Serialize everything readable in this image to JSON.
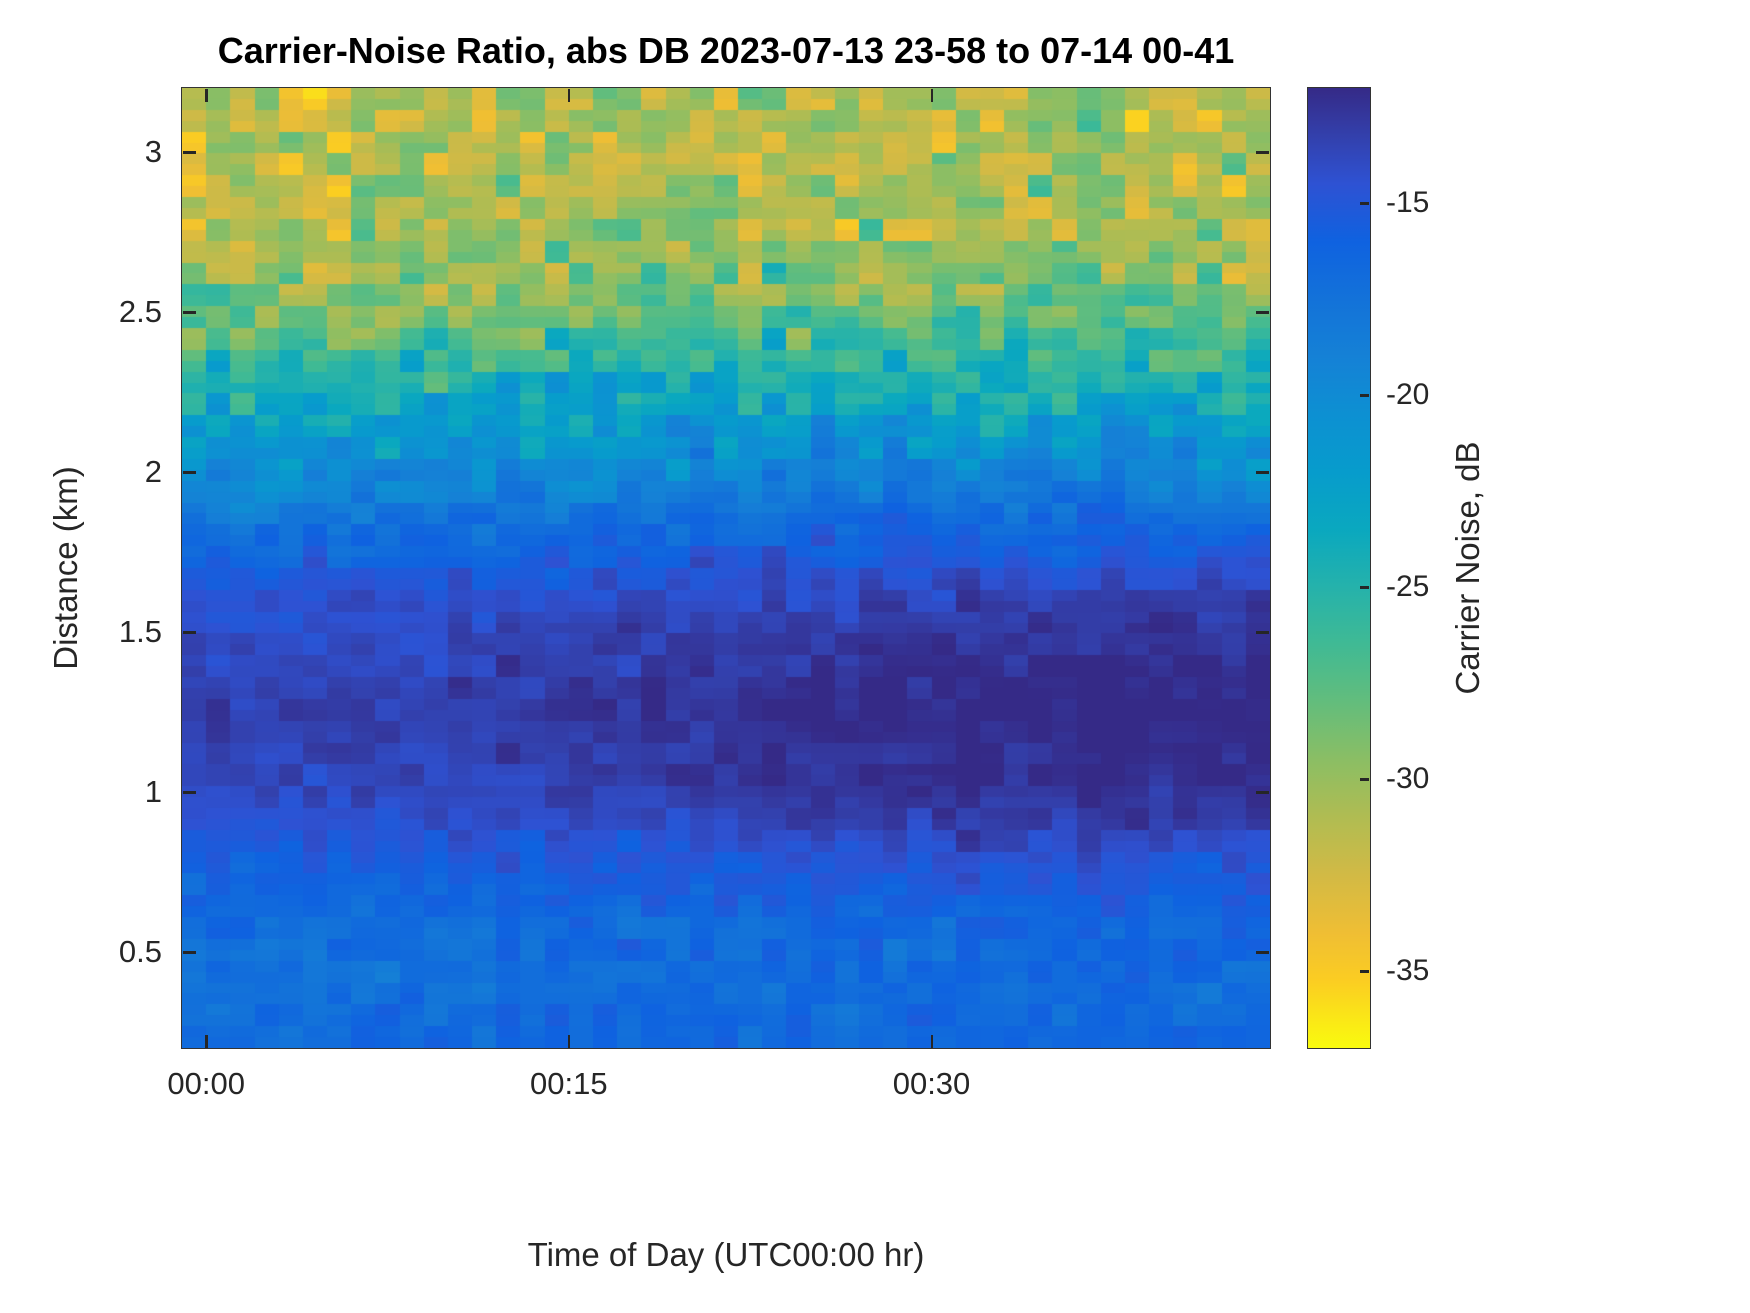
{
  "chart_data": {
    "type": "heatmap",
    "title": "Carrier-Noise Ratio, abs DB 2023-07-13 23-58 to 07-14 00-41",
    "xlabel": "Time of Day (UTC00:00 hr)",
    "ylabel": "Distance (km)",
    "colorbar_label": "Carrier Noise, dB",
    "x_range_minutes": [
      -1,
      44
    ],
    "y_range_km": [
      0.2,
      3.2
    ],
    "x_ticks": [
      {
        "minute": 0,
        "label": "00:00"
      },
      {
        "minute": 15,
        "label": "00:15"
      },
      {
        "minute": 30,
        "label": "00:30"
      }
    ],
    "y_ticks": [
      {
        "km": 0.5,
        "label": "0.5"
      },
      {
        "km": 1,
        "label": "1"
      },
      {
        "km": 1.5,
        "label": "1.5"
      },
      {
        "km": 2,
        "label": "2"
      },
      {
        "km": 2.5,
        "label": "2.5"
      },
      {
        "km": 3,
        "label": "3"
      }
    ],
    "color_scale": {
      "min_db": -37,
      "max_db": -12,
      "ticks": [
        {
          "db": -15,
          "label": "-15"
        },
        {
          "db": -20,
          "label": "-20"
        },
        {
          "db": -25,
          "label": "-25"
        },
        {
          "db": -30,
          "label": "-30"
        },
        {
          "db": -35,
          "label": "-35"
        }
      ]
    },
    "colormap": {
      "name": "parula-reversed (dark blue = strong carrier near -12 dB, yellow = weak near -37 dB)",
      "stops": [
        {
          "t": 0.0,
          "hex": "#352a87"
        },
        {
          "t": 0.05,
          "hex": "#3340ac"
        },
        {
          "t": 0.1,
          "hex": "#2e52d3"
        },
        {
          "t": 0.16,
          "hex": "#0f62e0"
        },
        {
          "t": 0.22,
          "hex": "#1372d9"
        },
        {
          "t": 0.28,
          "hex": "#1581d6"
        },
        {
          "t": 0.34,
          "hex": "#0d90d2"
        },
        {
          "t": 0.4,
          "hex": "#079ccc"
        },
        {
          "t": 0.46,
          "hex": "#0aa8bf"
        },
        {
          "t": 0.52,
          "hex": "#25b2ab"
        },
        {
          "t": 0.58,
          "hex": "#40ba94"
        },
        {
          "t": 0.64,
          "hex": "#63bd7c"
        },
        {
          "t": 0.7,
          "hex": "#8bbe64"
        },
        {
          "t": 0.76,
          "hex": "#b0bc52"
        },
        {
          "t": 0.82,
          "hex": "#d2ba45"
        },
        {
          "t": 0.88,
          "hex": "#efbe34"
        },
        {
          "t": 0.93,
          "hex": "#fbcd22"
        },
        {
          "t": 1.0,
          "hex": "#f9fb0e"
        }
      ]
    },
    "grid": {
      "n_cols": 45,
      "n_rows": 88,
      "minutes_per_col": 1,
      "row_noise_block": 2,
      "noise_seed": 1337
    },
    "distance_profile_db": [
      {
        "km": 0.2,
        "mean": -16.6,
        "noise": 0.9
      },
      {
        "km": 0.4,
        "mean": -17.2,
        "noise": 1.1
      },
      {
        "km": 0.6,
        "mean": -17.0,
        "noise": 1.1
      },
      {
        "km": 0.8,
        "mean": -15.3,
        "noise": 0.9
      },
      {
        "km": 1.0,
        "mean": -13.7,
        "noise": 0.7
      },
      {
        "km": 1.25,
        "mean": -13.1,
        "noise": 0.7
      },
      {
        "km": 1.5,
        "mean": -13.9,
        "noise": 0.8
      },
      {
        "km": 1.7,
        "mean": -15.4,
        "noise": 1.0
      },
      {
        "km": 1.85,
        "mean": -17.3,
        "noise": 1.2
      },
      {
        "km": 2.0,
        "mean": -19.8,
        "noise": 1.8
      },
      {
        "km": 2.15,
        "mean": -22.3,
        "noise": 2.4
      },
      {
        "km": 2.3,
        "mean": -24.8,
        "noise": 2.6
      },
      {
        "km": 2.45,
        "mean": -27.3,
        "noise": 2.8
      },
      {
        "km": 2.6,
        "mean": -29.4,
        "noise": 2.8
      },
      {
        "km": 2.8,
        "mean": -30.6,
        "noise": 2.8
      },
      {
        "km": 3.0,
        "mean": -31.0,
        "noise": 2.8
      },
      {
        "km": 3.2,
        "mean": -31.0,
        "noise": 2.9
      }
    ],
    "time_trend": {
      "description": "strong carrier band near 0.8-1.7 km darkens (approaches -12 dB) after ~00:10",
      "start_min": 10,
      "end_min": 32,
      "max_boost_db": 1.4,
      "center_km": 1.25,
      "halfwidth_km": 0.75
    }
  }
}
